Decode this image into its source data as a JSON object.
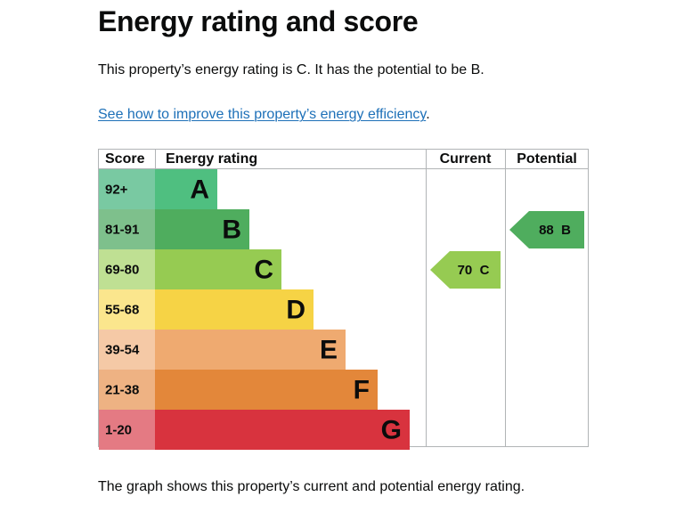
{
  "heading": "Energy rating and score",
  "intro": "This property’s energy rating is C. It has the potential to be B.",
  "improve_link": "See how to improve this property’s energy efficiency",
  "improve_suffix": ".",
  "footer": "The graph shows this property’s current and potential energy rating.",
  "chart_data": {
    "type": "bar",
    "headers": {
      "score": "Score",
      "rating": "Energy rating",
      "current": "Current",
      "potential": "Potential"
    },
    "bands": [
      {
        "letter": "A",
        "range": "92+",
        "color": "#4fbf80",
        "score_bg": "#79c9a2"
      },
      {
        "letter": "B",
        "range": "81-91",
        "color": "#4fad5e",
        "score_bg": "#7ec08c"
      },
      {
        "letter": "C",
        "range": "69-80",
        "color": "#96cb52",
        "score_bg": "#bfe093"
      },
      {
        "letter": "D",
        "range": "55-68",
        "color": "#f6d345",
        "score_bg": "#fbe68d"
      },
      {
        "letter": "E",
        "range": "39-54",
        "color": "#efaa70",
        "score_bg": "#f5c9a6"
      },
      {
        "letter": "F",
        "range": "21-38",
        "color": "#e3873a",
        "score_bg": "#eeb283"
      },
      {
        "letter": "G",
        "range": "1-20",
        "color": "#d8333e",
        "score_bg": "#e47a83"
      }
    ],
    "current": {
      "score": 70,
      "letter": "C",
      "label": "70  C"
    },
    "potential": {
      "score": 88,
      "letter": "B",
      "label": "88  B"
    }
  }
}
